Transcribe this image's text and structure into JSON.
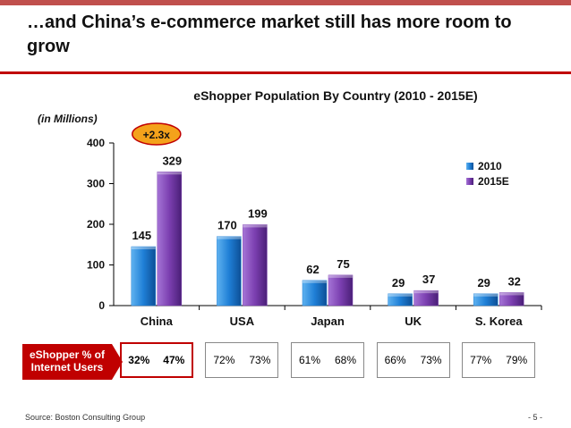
{
  "slide": {
    "title": "…and China’s e-commerce market still has more room to grow",
    "source": "Source:  Boston Consulting Group",
    "page_number": "- 5 -"
  },
  "chart_data": {
    "type": "bar",
    "title": "eShopper Population By Country (2010 - 2015E)",
    "unit_label": "(in Millions)",
    "categories": [
      "China",
      "USA",
      "Japan",
      "UK",
      "S. Korea"
    ],
    "series": [
      {
        "name": "2010",
        "values": [
          145,
          170,
          62,
          29,
          29
        ],
        "color": "#1f7fd6"
      },
      {
        "name": "2015E",
        "values": [
          329,
          199,
          75,
          37,
          32
        ],
        "color": "#7b3fb0"
      }
    ],
    "ylim": [
      0,
      400
    ],
    "yticks": [
      0,
      100,
      200,
      300,
      400
    ],
    "grid": false,
    "legend": "right",
    "annotation": {
      "text": "+2.3x",
      "category": "China",
      "color": "#f4a21b"
    }
  },
  "internet_users": {
    "label": "eShopper % of Internet Users",
    "rows": [
      {
        "country": "China",
        "v2010": "32%",
        "v2015": "47%"
      },
      {
        "country": "USA",
        "v2010": "72%",
        "v2015": "73%"
      },
      {
        "country": "Japan",
        "v2010": "61%",
        "v2015": "68%"
      },
      {
        "country": "UK",
        "v2010": "66%",
        "v2015": "73%"
      },
      {
        "country": "S. Korea",
        "v2010": "77%",
        "v2015": "79%"
      }
    ]
  }
}
